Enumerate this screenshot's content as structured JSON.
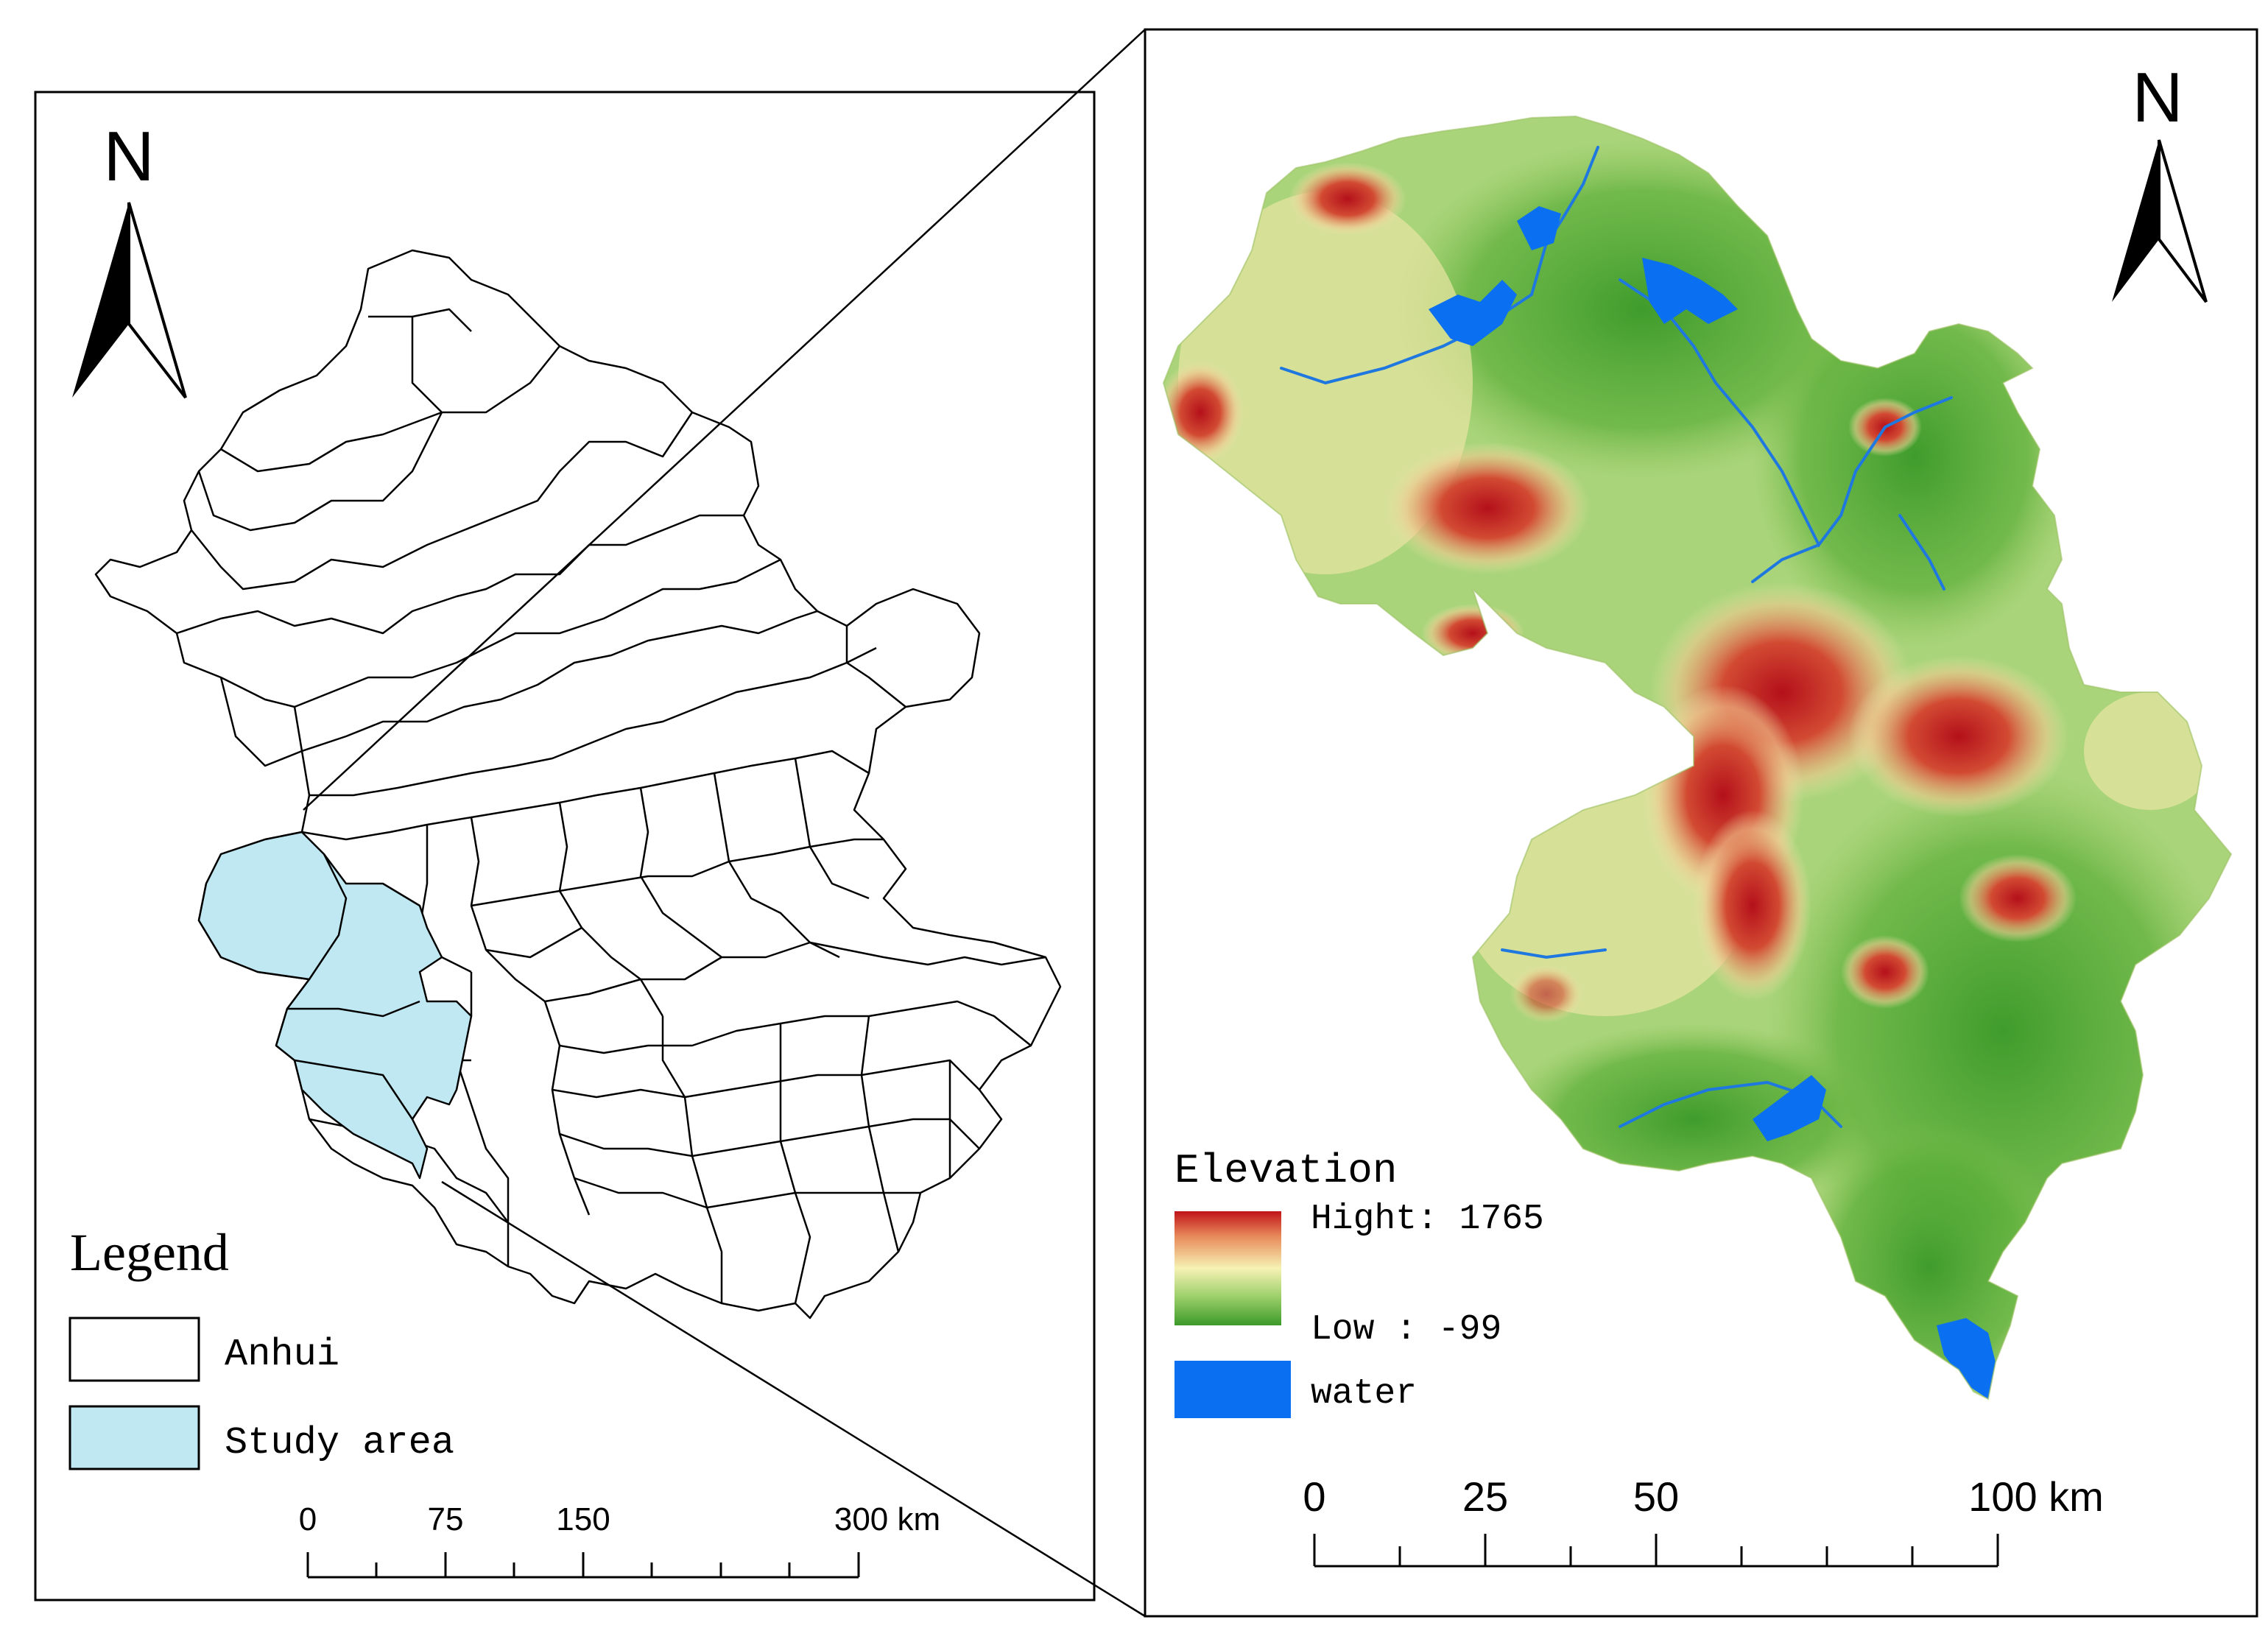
{
  "left_map": {
    "north_label": "N",
    "legend_title": "Legend",
    "legend_items": [
      {
        "label": "Anhui",
        "color": "#ffffff"
      },
      {
        "label": "Study area",
        "color": "#bfe8f3"
      }
    ],
    "scale_labels": [
      "0",
      "75",
      "150",
      "300 km"
    ]
  },
  "right_map": {
    "north_label": "N",
    "legend_title": "Elevation",
    "high_label": "Hight: 1765",
    "low_label": "Low : -99",
    "water_label": "water",
    "scale_labels": [
      "0",
      "25",
      "50",
      "100 km"
    ],
    "colors": {
      "high": "#c0141a",
      "mid": "#f6f2b4",
      "low": "#3c9a2a",
      "water": "#0a6ff0"
    }
  }
}
